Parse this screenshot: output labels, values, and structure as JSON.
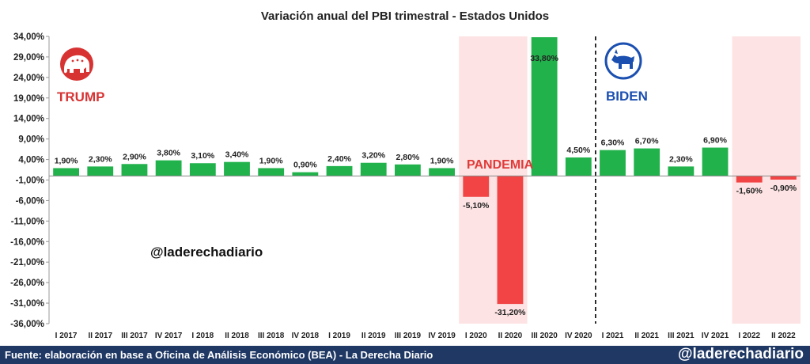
{
  "footer": {
    "source": "Fuente: elaboración en base a Oficina de Análisis Económico (BEA) - La Derecha Diario",
    "handle": "@laderechadiario"
  },
  "watermark": "@laderechadiario",
  "colors": {
    "positive": "#22b24c",
    "negative": "#f24444",
    "shade": "#fde3e3",
    "trump": "#d83333",
    "biden": "#1b4fb0",
    "pandemia": "#e03a3a",
    "footer_bg": "#1f3864"
  },
  "chart_data": {
    "type": "bar",
    "title": "Variación anual del PBI trimestral - Estados Unidos",
    "xlabel": "",
    "ylabel": "",
    "categories": [
      "I 2017",
      "II 2017",
      "III 2017",
      "IV 2017",
      "I 2018",
      "II 2018",
      "III 2018",
      "IV 2018",
      "I 2019",
      "II 2019",
      "III 2019",
      "IV 2019",
      "I 2020",
      "II 2020",
      "III 2020",
      "IV 2020",
      "I 2021",
      "II 2021",
      "III 2021",
      "IV 2021",
      "I 2022",
      "II 2022"
    ],
    "values": [
      1.9,
      2.3,
      2.9,
      3.8,
      3.1,
      3.4,
      1.9,
      0.9,
      2.4,
      3.2,
      2.8,
      1.9,
      -5.1,
      -31.2,
      33.8,
      4.5,
      6.3,
      6.7,
      2.3,
      6.9,
      -1.6,
      -0.9
    ],
    "labels": [
      "1,90%",
      "2,30%",
      "2,90%",
      "3,80%",
      "3,10%",
      "3,40%",
      "1,90%",
      "0,90%",
      "2,40%",
      "3,20%",
      "2,80%",
      "1,90%",
      "-5,10%",
      "-31,20%",
      "33,80%",
      "4,50%",
      "6,30%",
      "6,70%",
      "2,30%",
      "6,90%",
      "-1,60%",
      "-0,90%"
    ],
    "ylim": [
      -36,
      34
    ],
    "yticks": [
      34,
      29,
      24,
      19,
      14,
      9,
      4,
      -1,
      -6,
      -11,
      -16,
      -21,
      -26,
      -31,
      -36
    ],
    "ytick_labels": [
      "34,00%",
      "29,00%",
      "24,00%",
      "19,00%",
      "14,00%",
      "9,00%",
      "4,00%",
      "-1,00%",
      "-6,00%",
      "-11,00%",
      "-16,00%",
      "-21,00%",
      "-26,00%",
      "-31,00%",
      "-36,00%"
    ],
    "baseline": 0,
    "shaded_ranges": [
      {
        "from": "I 2020",
        "to": "II 2020",
        "label": "PANDEMIA"
      },
      {
        "from": "I 2022",
        "to": "II 2022",
        "label": ""
      }
    ],
    "annotations": [
      {
        "text": "TRUMP",
        "icon": "republican-elephant-icon"
      },
      {
        "text": "BIDEN",
        "icon": "democrat-donkey-icon"
      }
    ],
    "divider_after": "IV 2020"
  }
}
